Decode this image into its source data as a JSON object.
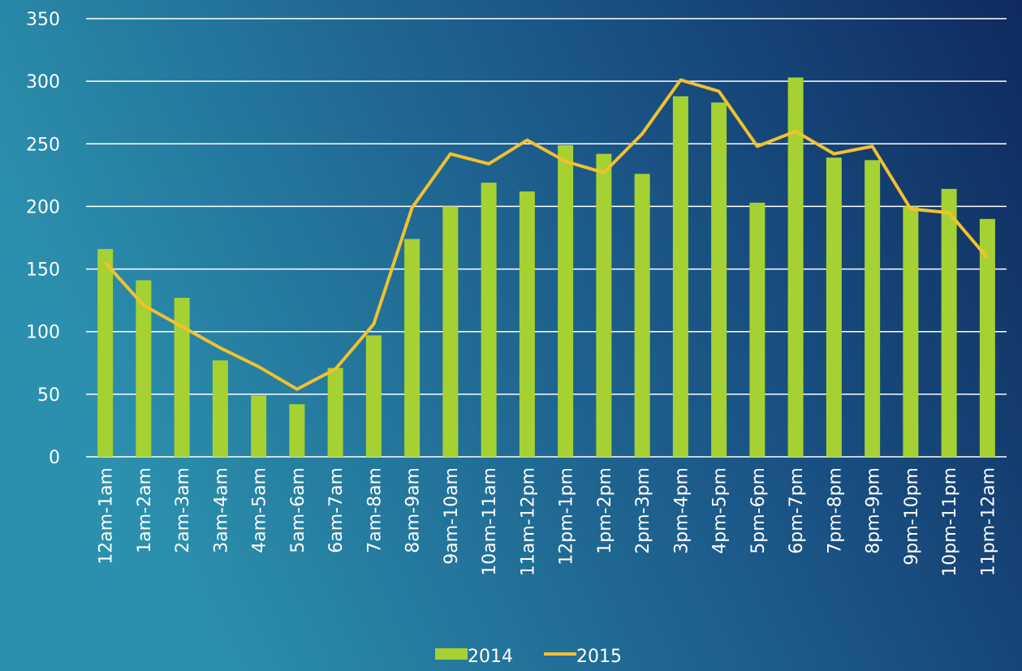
{
  "chart_data": {
    "type": "bar_line",
    "categories": [
      "12am-1am",
      "1am-2am",
      "2am-3am",
      "3am-4am",
      "4am-5am",
      "5am-6am",
      "6am-7am",
      "7am-8am",
      "8am-9am",
      "9am-10am",
      "10am-11am",
      "11am-12pm",
      "12pm-1pm",
      "1pm-2pm",
      "2pm-3pm",
      "3pm-4pm",
      "4pm-5pm",
      "5pm-6pm",
      "6pm-7pm",
      "7pm-8pm",
      "8pm-9pm",
      "9pm-10pm",
      "10pm-11pm",
      "11pm-12am"
    ],
    "series": [
      {
        "name": "2014",
        "type": "bar",
        "color": "#a6d133",
        "values": [
          166,
          141,
          127,
          77,
          49,
          42,
          71,
          97,
          174,
          200,
          219,
          212,
          249,
          242,
          226,
          288,
          283,
          203,
          303,
          239,
          237,
          200,
          214,
          190
        ]
      },
      {
        "name": "2015",
        "type": "line",
        "color": "#f2c12e",
        "values": [
          155,
          121,
          104,
          87,
          72,
          54,
          70,
          106,
          199,
          242,
          234,
          253,
          236,
          227,
          258,
          301,
          292,
          248,
          260,
          242,
          248,
          198,
          195,
          159
        ]
      }
    ],
    "ylim": [
      0,
      350
    ],
    "yticks": [
      0,
      50,
      100,
      150,
      200,
      250,
      300,
      350
    ],
    "grid": true,
    "legend": "bottom"
  }
}
